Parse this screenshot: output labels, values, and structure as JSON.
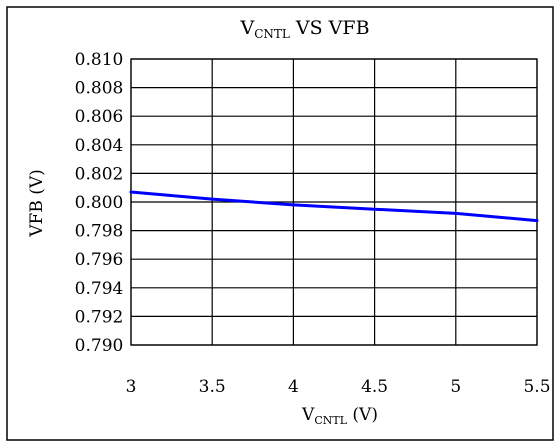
{
  "chart_data": {
    "type": "line",
    "title": {
      "main": "V",
      "sub": "CNTL",
      "rest": " VS VFB"
    },
    "xlabel": {
      "main": "V",
      "sub": "CNTL",
      "rest": " (V)"
    },
    "ylabel": "VFB (V)",
    "xlim": [
      3,
      5.5
    ],
    "ylim": [
      0.79,
      0.81
    ],
    "x_ticks": [
      "3",
      "3.5",
      "4",
      "4.5",
      "5",
      "5.5"
    ],
    "y_ticks": [
      "0.810",
      "0.808",
      "0.806",
      "0.804",
      "0.802",
      "0.800",
      "0.798",
      "0.796",
      "0.794",
      "0.792",
      "0.790"
    ],
    "grid": true,
    "series": [
      {
        "color": "#0000ff",
        "x": [
          3.0,
          3.5,
          4.0,
          4.5,
          5.0,
          5.5
        ],
        "y": [
          0.8007,
          0.8002,
          0.7998,
          0.7995,
          0.7992,
          0.7987
        ]
      }
    ]
  }
}
